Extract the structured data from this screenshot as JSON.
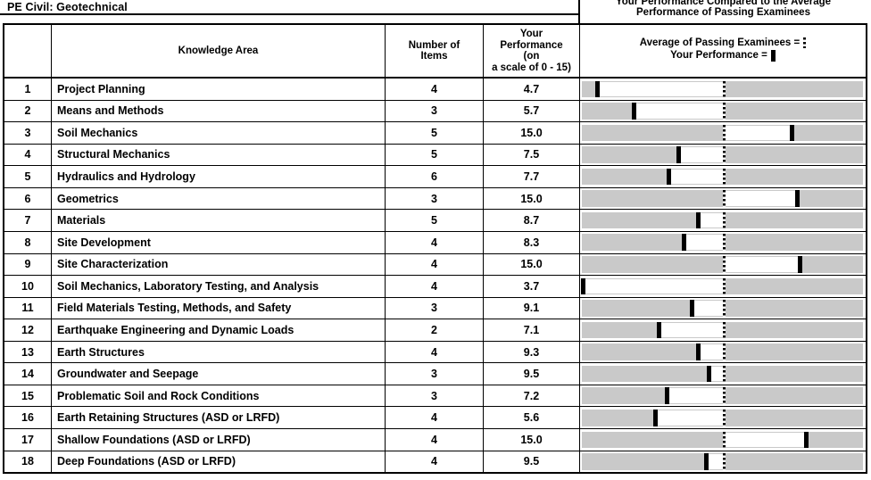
{
  "title": "PE Civil: Geotechnical",
  "chart_caption_lines": [
    "Your Performance Compared to the Average",
    "Performance of Passing Examinees"
  ],
  "table": {
    "headers": {
      "row_number": "",
      "knowledge_area": "Knowledge Area",
      "number_of_items_lines": [
        "Number of",
        "Items"
      ],
      "your_performance_lines": [
        "Your",
        "Performance",
        "(on",
        "a scale of 0 - 15)"
      ]
    },
    "legend": {
      "average_label": "Average of Passing Examinees =",
      "your_label": "Your Performance ="
    }
  },
  "chart_data": {
    "type": "table",
    "title": "Your Performance Compared to the Average Performance of Passing Examinees",
    "scale_note": "a scale of 0 - 15",
    "legend": [
      "Average of Passing Examinees (dashed marker)",
      "Your Performance (solid marker)"
    ],
    "avg_marker_pct": 50.5,
    "colors": {
      "bar_gray": "#c9c9c9",
      "marker_black": "#000000",
      "range_white": "#ffffff"
    },
    "rows": [
      {
        "num": "1",
        "area": "Project Planning",
        "items": "4",
        "performance": "4.7",
        "your_marker_pct": 5.6
      },
      {
        "num": "2",
        "area": "Means and Methods",
        "items": "3",
        "performance": "5.7",
        "your_marker_pct": 18.5
      },
      {
        "num": "3",
        "area": "Soil Mechanics",
        "items": "5",
        "performance": "15.0",
        "your_marker_pct": 74.8
      },
      {
        "num": "4",
        "area": "Structural Mechanics",
        "items": "5",
        "performance": "7.5",
        "your_marker_pct": 34.3
      },
      {
        "num": "5",
        "area": "Hydraulics and Hydrology",
        "items": "6",
        "performance": "7.7",
        "your_marker_pct": 31.0
      },
      {
        "num": "6",
        "area": "Geometrics",
        "items": "3",
        "performance": "15.0",
        "your_marker_pct": 76.8
      },
      {
        "num": "7",
        "area": "Materials",
        "items": "5",
        "performance": "8.7",
        "your_marker_pct": 41.4
      },
      {
        "num": "8",
        "area": "Site Development",
        "items": "4",
        "performance": "8.3",
        "your_marker_pct": 36.3
      },
      {
        "num": "9",
        "area": "Site Characterization",
        "items": "4",
        "performance": "15.0",
        "your_marker_pct": 77.5
      },
      {
        "num": "10",
        "area": "Soil Mechanics, Laboratory Testing, and Analysis",
        "items": "4",
        "performance": "3.7",
        "your_marker_pct": 0.5
      },
      {
        "num": "11",
        "area": "Field Materials Testing, Methods, and Safety",
        "items": "3",
        "performance": "9.1",
        "your_marker_pct": 39.2
      },
      {
        "num": "12",
        "area": "Earthquake Engineering and Dynamic Loads",
        "items": "2",
        "performance": "7.1",
        "your_marker_pct": 27.5
      },
      {
        "num": "13",
        "area": "Earth Structures",
        "items": "4",
        "performance": "9.3",
        "your_marker_pct": 41.4
      },
      {
        "num": "14",
        "area": "Groundwater and Seepage",
        "items": "3",
        "performance": "9.5",
        "your_marker_pct": 45.2
      },
      {
        "num": "15",
        "area": "Problematic Soil and Rock Conditions",
        "items": "3",
        "performance": "7.2",
        "your_marker_pct": 30.3
      },
      {
        "num": "16",
        "area": "Earth Retaining Structures (ASD or LRFD)",
        "items": "4",
        "performance": "5.6",
        "your_marker_pct": 26.1
      },
      {
        "num": "17",
        "area": "Shallow Foundations (ASD or LRFD)",
        "items": "4",
        "performance": "15.0",
        "your_marker_pct": 79.7
      },
      {
        "num": "18",
        "area": "Deep Foundations (ASD or LRFD)",
        "items": "4",
        "performance": "9.5",
        "your_marker_pct": 44.2
      }
    ]
  }
}
